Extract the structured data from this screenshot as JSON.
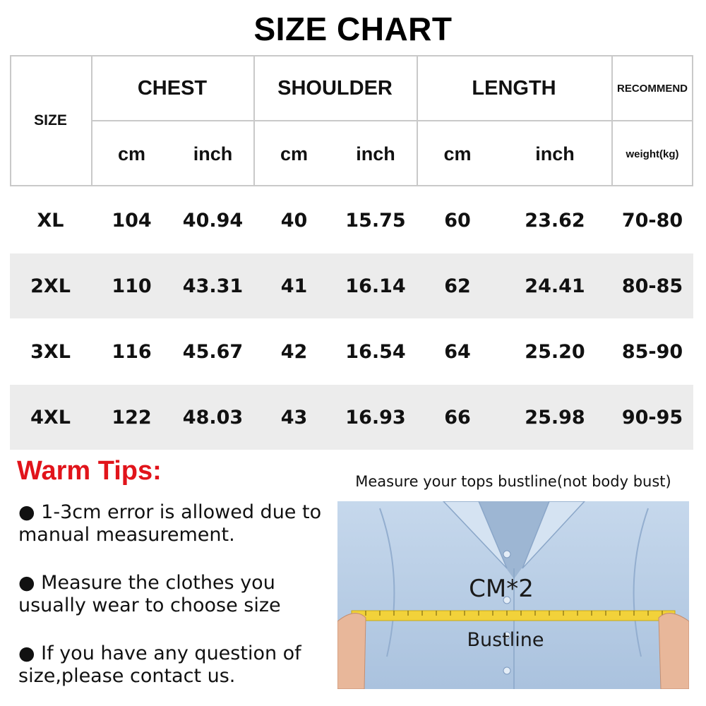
{
  "title": "SIZE CHART",
  "header": {
    "size_label": "SIZE",
    "groups": [
      "CHEST",
      "SHOULDER",
      "LENGTH",
      "RECOMMEND"
    ],
    "units": [
      "cm",
      "inch",
      "cm",
      "inch",
      "cm",
      "inch",
      "weight(kg)"
    ]
  },
  "rows": [
    {
      "size": "XL",
      "chest_cm": "104",
      "chest_inch": "40.94",
      "shoulder_cm": "40",
      "shoulder_inch": "15.75",
      "length_cm": "60",
      "length_inch": "23.62",
      "weight": "70-80"
    },
    {
      "size": "2XL",
      "chest_cm": "110",
      "chest_inch": "43.31",
      "shoulder_cm": "41",
      "shoulder_inch": "16.14",
      "length_cm": "62",
      "length_inch": "24.41",
      "weight": "80-85"
    },
    {
      "size": "3XL",
      "chest_cm": "116",
      "chest_inch": "45.67",
      "shoulder_cm": "42",
      "shoulder_inch": "16.54",
      "length_cm": "64",
      "length_inch": "25.20",
      "weight": "85-90"
    },
    {
      "size": "4XL",
      "chest_cm": "122",
      "chest_inch": "48.03",
      "shoulder_cm": "43",
      "shoulder_inch": "16.93",
      "length_cm": "66",
      "length_inch": "25.98",
      "weight": "90-95"
    }
  ],
  "tips": {
    "title": "Warm Tips:",
    "items": [
      "● 1-3cm error is allowed due to manual measurement.",
      "● Measure the clothes you usually wear to choose size",
      "● If you have any question of size,please contact us."
    ]
  },
  "measure": {
    "caption": "Measure your tops bustline(not body bust)",
    "formula": "CM*2",
    "label": "Bustline"
  },
  "colors": {
    "tips_title": "#e1141b",
    "row_shade": "#ececec",
    "grid_line": "#c9c9c9",
    "shirt": "#b9cde4",
    "tape": "#f2d23a"
  }
}
